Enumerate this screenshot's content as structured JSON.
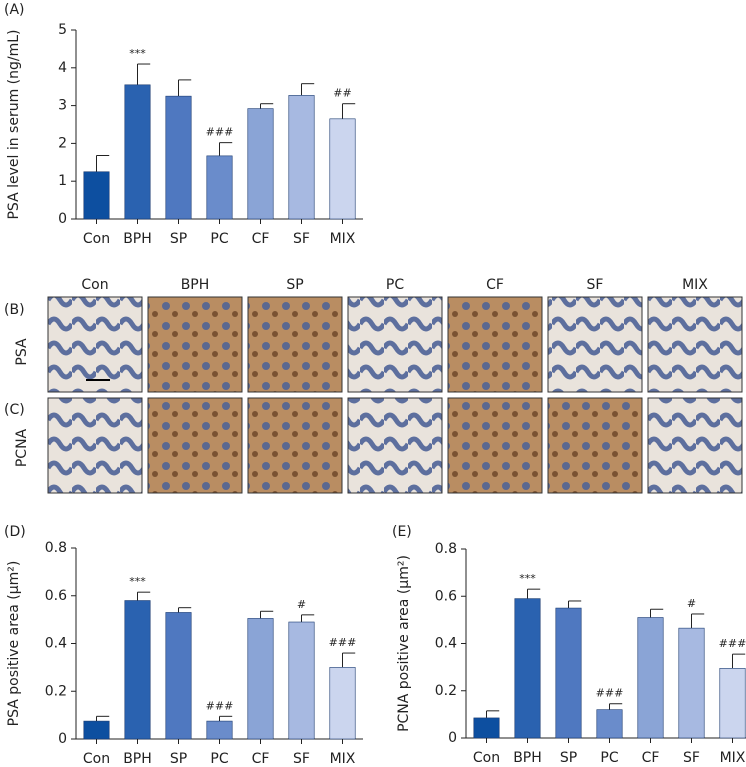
{
  "chart_data": [
    {
      "type": "bar",
      "panel_label": "(A)",
      "y_label": "PSA level in serum (ng/mL)",
      "categories": [
        "Con",
        "BPH",
        "SP",
        "PC",
        "CF",
        "SF",
        "MIX"
      ],
      "values": [
        1.25,
        3.55,
        3.25,
        1.67,
        2.92,
        3.27,
        2.65
      ],
      "errors": [
        0.43,
        0.55,
        0.43,
        0.35,
        0.13,
        0.31,
        0.4
      ],
      "annotations": [
        null,
        "***",
        null,
        "###",
        null,
        null,
        "##"
      ],
      "colors": [
        "#0d4fa0",
        "#2a62b0",
        "#4f78c0",
        "#6a8ccb",
        "#8aa4d6",
        "#a7b9e1",
        "#cbd5ee"
      ],
      "ylim": [
        0,
        5
      ],
      "yticks": [
        0,
        1,
        2,
        3,
        4,
        5
      ]
    },
    {
      "type": "bar",
      "panel_label": "(D)",
      "y_label": "PSA positive area (μm²)",
      "categories": [
        "Con",
        "BPH",
        "SP",
        "PC",
        "CF",
        "SF",
        "MIX"
      ],
      "values": [
        0.075,
        0.58,
        0.53,
        0.075,
        0.505,
        0.49,
        0.3
      ],
      "errors": [
        0.02,
        0.035,
        0.02,
        0.02,
        0.03,
        0.03,
        0.06
      ],
      "annotations": [
        null,
        "***",
        null,
        "###",
        null,
        "#",
        "###"
      ],
      "colors": [
        "#0d4fa0",
        "#2a62b0",
        "#4f78c0",
        "#6a8ccb",
        "#8aa4d6",
        "#a7b9e1",
        "#cbd5ee"
      ],
      "ylim": [
        0,
        0.8
      ],
      "yticks": [
        0,
        0.2,
        0.4,
        0.6,
        0.8
      ]
    },
    {
      "type": "bar",
      "panel_label": "(E)",
      "y_label": "PCNA positive area (μm²)",
      "categories": [
        "Con",
        "BPH",
        "SP",
        "PC",
        "CF",
        "SF",
        "MIX"
      ],
      "values": [
        0.085,
        0.59,
        0.55,
        0.12,
        0.51,
        0.465,
        0.295
      ],
      "errors": [
        0.03,
        0.04,
        0.03,
        0.025,
        0.035,
        0.06,
        0.06
      ],
      "annotations": [
        null,
        "***",
        null,
        "###",
        null,
        "#",
        "###"
      ],
      "colors": [
        "#0d4fa0",
        "#2a62b0",
        "#4f78c0",
        "#6a8ccb",
        "#8aa4d6",
        "#a7b9e1",
        "#cbd5ee"
      ],
      "ylim": [
        0,
        0.8
      ],
      "yticks": [
        0,
        0.2,
        0.4,
        0.6,
        0.8
      ]
    }
  ],
  "micrographs": {
    "row_panel_labels": [
      "(B)",
      "(C)"
    ],
    "row_labels": [
      "PSA",
      "PCNA"
    ],
    "columns": [
      "Con",
      "BPH",
      "SP",
      "PC",
      "CF",
      "SF",
      "MIX"
    ]
  }
}
